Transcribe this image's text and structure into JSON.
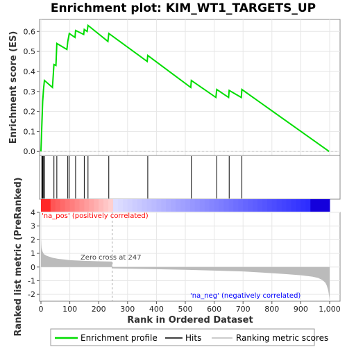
{
  "chart_data": {
    "type": "line",
    "title": "Enrichment plot: KIM_WT1_TARGETS_UP",
    "xlabel": "Rank in Ordered Dataset",
    "ylabel_top": "Enrichment score (ES)",
    "ylabel_bottom": "Ranked list metric (PreRanked)",
    "x_range": [
      0,
      1000
    ],
    "x_ticks": [
      0,
      100,
      200,
      300,
      400,
      500,
      600,
      700,
      800,
      900,
      1000
    ],
    "x_tick_labels": [
      "0",
      "100",
      "200",
      "300",
      "400",
      "500",
      "600",
      "700",
      "800",
      "900",
      "1,000"
    ],
    "es_range": [
      -0.02,
      0.66
    ],
    "es_ticks": [
      0.0,
      0.1,
      0.2,
      0.3,
      0.4,
      0.5,
      0.6
    ],
    "es_tick_labels": [
      "0.0",
      "0.1",
      "0.2",
      "0.3",
      "0.4",
      "0.5",
      "0.6"
    ],
    "metric_range": [
      -2.5,
      4
    ],
    "metric_ticks": [
      -2,
      -1,
      0,
      1,
      2,
      3,
      4
    ],
    "metric_tick_labels": [
      "-2",
      "-1",
      "0",
      "1",
      "2",
      "3",
      "4"
    ],
    "grid": true,
    "enrichment_profile": {
      "name": "Enrichment profile",
      "color": "#00dd00",
      "x": [
        0,
        3,
        6,
        9,
        12,
        40,
        45,
        52,
        55,
        90,
        93,
        98,
        118,
        120,
        148,
        150,
        160,
        163,
        232,
        235,
        368,
        370,
        519,
        521,
        606,
        609,
        650,
        652,
        694,
        696,
        998
      ],
      "y": [
        0.0,
        0.12,
        0.25,
        0.31,
        0.355,
        0.32,
        0.435,
        0.43,
        0.54,
        0.51,
        0.55,
        0.59,
        0.57,
        0.605,
        0.585,
        0.61,
        0.6,
        0.63,
        0.55,
        0.59,
        0.45,
        0.48,
        0.32,
        0.355,
        0.27,
        0.31,
        0.27,
        0.305,
        0.27,
        0.31,
        0.0
      ]
    },
    "hits": [
      3,
      6,
      9,
      12,
      45,
      55,
      93,
      98,
      120,
      150,
      163,
      235,
      370,
      521,
      609,
      652,
      696
    ],
    "hits_label": "Hits",
    "ranking_metric_label": "Ranking metric scores",
    "metric_curve": {
      "x": [
        0,
        2,
        5,
        10,
        20,
        40,
        60,
        80,
        100,
        150,
        200,
        246,
        247,
        250,
        300,
        400,
        500,
        600,
        700,
        800,
        850,
        900,
        940,
        960,
        975,
        985,
        990,
        995,
        998,
        1000
      ],
      "y": [
        2.1,
        1.4,
        1.15,
        0.95,
        0.82,
        0.68,
        0.6,
        0.55,
        0.5,
        0.45,
        0.42,
        0.4,
        -0.05,
        -0.1,
        -0.12,
        -0.16,
        -0.2,
        -0.26,
        -0.32,
        -0.45,
        -0.52,
        -0.6,
        -0.7,
        -0.8,
        -0.95,
        -1.15,
        -1.35,
        -1.7,
        -2.1,
        -2.4
      ]
    },
    "zero_cross_label": "Zero cross at 247",
    "zero_cross_rank": 247,
    "pos_label": "'na_pos' (positively correlated)",
    "neg_label": "'na_neg' (negatively correlated)",
    "pos_color": "#ff0000",
    "neg_color": "#0000ff",
    "legend": [
      {
        "label": "Enrichment profile",
        "color": "#00dd00"
      },
      {
        "label": "Hits",
        "color": "#000000"
      },
      {
        "label": "Ranking metric scores",
        "color": "#bbbbbb"
      }
    ],
    "legend_placement": "bottom"
  }
}
